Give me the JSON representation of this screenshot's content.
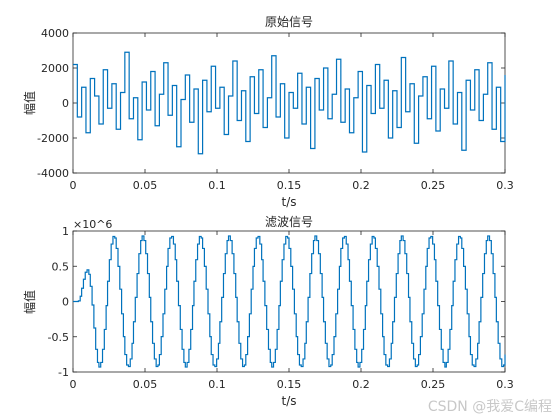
{
  "watermark": "CSDN @我爱C编程",
  "chart_data": [
    {
      "type": "line",
      "title": "原始信号",
      "xlabel": "t/s",
      "ylabel": "幅值",
      "xlim": [
        0,
        0.3
      ],
      "ylim": [
        -4000,
        4000
      ],
      "xticks": [
        0,
        0.05,
        0.1,
        0.15,
        0.2,
        0.25,
        0.3
      ],
      "xtick_labels": [
        "0",
        "0.05",
        "0.1",
        "0.15",
        "0.2",
        "0.25",
        "0.3"
      ],
      "yticks": [
        -4000,
        -2000,
        0,
        2000,
        4000
      ],
      "ytick_labels": [
        "-4000",
        "-2000",
        "0",
        "2000",
        "4000"
      ],
      "grid": false,
      "color": "#0072BD",
      "x": [
        0,
        0.003,
        0.006,
        0.009,
        0.012,
        0.015,
        0.018,
        0.021,
        0.024,
        0.027,
        0.03,
        0.033,
        0.036,
        0.039,
        0.042,
        0.045,
        0.048,
        0.051,
        0.054,
        0.057,
        0.06,
        0.063,
        0.066,
        0.069,
        0.072,
        0.075,
        0.078,
        0.081,
        0.084,
        0.087,
        0.09,
        0.093,
        0.096,
        0.099,
        0.102,
        0.105,
        0.108,
        0.111,
        0.114,
        0.117,
        0.12,
        0.123,
        0.126,
        0.129,
        0.132,
        0.135,
        0.138,
        0.141,
        0.144,
        0.147,
        0.15,
        0.153,
        0.156,
        0.159,
        0.162,
        0.165,
        0.168,
        0.171,
        0.174,
        0.177,
        0.18,
        0.183,
        0.186,
        0.189,
        0.192,
        0.195,
        0.198,
        0.201,
        0.204,
        0.207,
        0.21,
        0.213,
        0.216,
        0.219,
        0.222,
        0.225,
        0.228,
        0.231,
        0.234,
        0.237,
        0.24,
        0.243,
        0.246,
        0.249,
        0.252,
        0.255,
        0.258,
        0.261,
        0.264,
        0.267,
        0.27,
        0.273,
        0.276,
        0.279,
        0.282,
        0.285,
        0.288,
        0.291,
        0.294,
        0.297,
        0.3
      ],
      "y": [
        2200,
        -800,
        900,
        -1700,
        1400,
        400,
        -1200,
        1900,
        -300,
        1100,
        -1500,
        600,
        2900,
        -900,
        300,
        -2100,
        1200,
        -400,
        1800,
        -1300,
        500,
        2300,
        -700,
        1000,
        -2500,
        200,
        1600,
        -1100,
        800,
        -2900,
        1300,
        -500,
        2100,
        -300,
        900,
        -1800,
        400,
        2400,
        -1000,
        700,
        -2200,
        1500,
        -600,
        1900,
        -1400,
        300,
        2700,
        -800,
        1100,
        -2000,
        600,
        -300,
        1700,
        -1200,
        900,
        -2600,
        1400,
        -400,
        2000,
        -900,
        500,
        2500,
        -1100,
        800,
        -1700,
        300,
        1800,
        -2800,
        1000,
        -600,
        2200,
        -300,
        1300,
        -2000,
        700,
        -1400,
        2600,
        -500,
        1100,
        -2300,
        400,
        1500,
        -900,
        2100,
        -1600,
        800,
        -300,
        2400,
        -1200,
        600,
        -2700,
        1300,
        -400,
        1900,
        -1000,
        500,
        2300,
        -1500,
        900,
        -2200,
        1600
      ],
      "annotations": []
    },
    {
      "type": "line",
      "title": "滤波信号",
      "xlabel": "t/s",
      "ylabel": "幅值",
      "xlim": [
        0,
        0.3
      ],
      "ylim": [
        -1,
        1
      ],
      "scale_multiplier": "×10^6",
      "xticks": [
        0,
        0.05,
        0.1,
        0.15,
        0.2,
        0.25,
        0.3
      ],
      "xtick_labels": [
        "0",
        "0.05",
        "0.1",
        "0.15",
        "0.2",
        "0.25",
        "0.3"
      ],
      "yticks": [
        -1,
        -0.5,
        0,
        0.5,
        1
      ],
      "ytick_labels": [
        "-1",
        "-0.5",
        "0",
        "0.5",
        "1"
      ],
      "grid": false,
      "color": "#0072BD",
      "signal": {
        "frequency_hz": 50,
        "amplitude": 0.93,
        "onset_s": 0.003,
        "ramp_s": 0.012,
        "step_s": 0.0012
      }
    }
  ]
}
